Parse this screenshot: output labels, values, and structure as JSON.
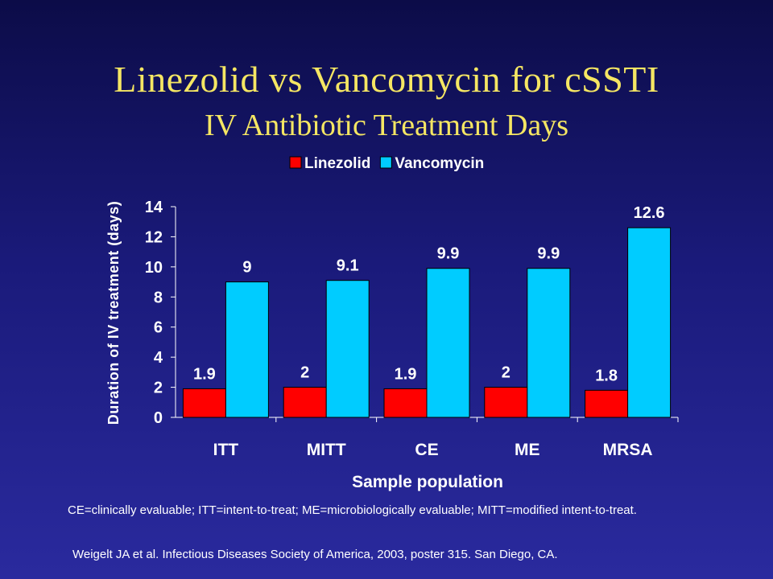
{
  "slide": {
    "title": "Linezolid vs Vancomycin for cSSTI",
    "subtitle": "IV Antibiotic Treatment Days",
    "footnote": "CE=clinically evaluable; ITT=intent-to-treat; ME=microbiologically evaluable; MITT=modified intent-to-treat.",
    "citation": "Weigelt JA et al. Infectious Diseases Society of America, 2003, poster 315. San Diego, CA."
  },
  "chart_data": {
    "type": "bar",
    "categories": [
      "ITT",
      "MITT",
      "CE",
      "ME",
      "MRSA"
    ],
    "series": [
      {
        "name": "Linezolid",
        "values": [
          1.9,
          2,
          1.9,
          2,
          1.8
        ],
        "labels": [
          "1.9",
          "2",
          "1.9",
          "2",
          "1.8"
        ],
        "color": "#ff0000"
      },
      {
        "name": "Vancomycin",
        "values": [
          9,
          9.1,
          9.9,
          9.9,
          12.6
        ],
        "labels": [
          "9",
          "9.1",
          "9.9",
          "9.9",
          "12.6"
        ],
        "color": "#00ccff"
      }
    ],
    "xlabel": "Sample population",
    "ylabel": "Duration of IV treatment (days)",
    "ylim": [
      0,
      14
    ],
    "yticks": [
      0,
      2,
      4,
      6,
      8,
      10,
      12,
      14
    ],
    "legend_position": "top",
    "grid": false
  }
}
